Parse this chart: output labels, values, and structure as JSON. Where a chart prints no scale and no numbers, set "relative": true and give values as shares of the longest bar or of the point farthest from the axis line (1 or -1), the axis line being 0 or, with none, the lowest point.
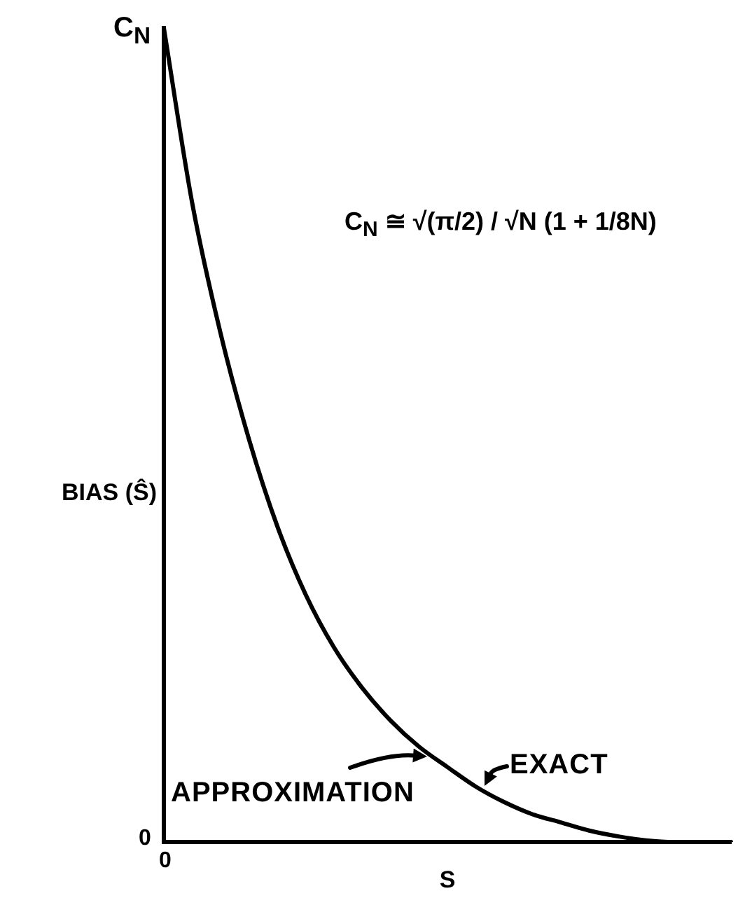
{
  "chart_data": {
    "type": "line",
    "xlabel": "S",
    "ylabel": "BIAS (Ŝ)",
    "relative": true,
    "categories": [
      null,
      null,
      null,
      null,
      null,
      null,
      null,
      null,
      null,
      null,
      null,
      null,
      null,
      null,
      null,
      null,
      null,
      null,
      null,
      null,
      null
    ],
    "values": [
      1,
      0.785,
      0.625,
      0.495,
      0.388,
      0.304,
      0.239,
      0.189,
      0.149,
      0.117,
      0.092,
      0.068,
      0.049,
      0.034,
      0.024,
      0.014,
      0.007,
      0.002,
      0,
      0,
      0
    ],
    "color": "#000000",
    "annotations": [
      "C$_{N}$ ≅ √(π/2) / √N (1 + 1/8N)",
      "C$_{N}$",
      "0",
      "0",
      "APPROXIMATION",
      "EXACT"
    ]
  }
}
